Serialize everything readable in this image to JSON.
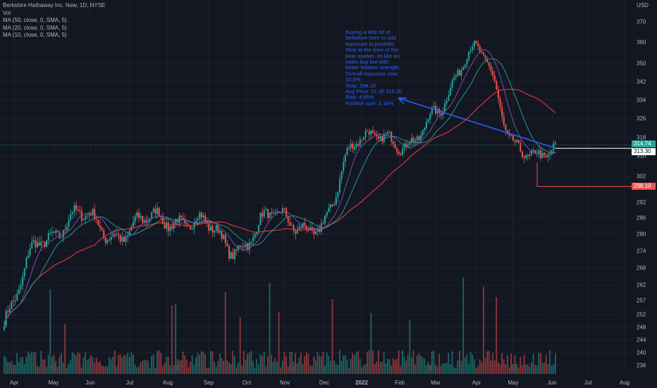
{
  "legend": {
    "title": "Berkshire Hathaway Inc. New, 1D, NYSE",
    "vol": "Vol",
    "ma50": "MA (50, close, 0, SMA, 5)",
    "ma20": "MA (20, close, 0, SMA, 5)",
    "ma10": "MA (10, close, 0, SMA, 5)"
  },
  "note": "Buying a little bit of\nberkshire here to add\nexposure to portfolio.\nStop at the lows of the\nbear market. Its like an\nindex buy but with\nbetter relative strength.\nOverall exposure now:\n32.8%\nStop: 298.10\nAvg Price: 51 @ 313.30\nRisk: 4.85%\nPosition size: 3.18%",
  "currency": "USD",
  "price_tags": {
    "last": "314.74",
    "avg": "313.30",
    "stop": "298.10"
  },
  "colors": {
    "up": "#26a69a",
    "down": "#ef5350",
    "ma50": "#e53935",
    "ma20": "#26a69a",
    "ma10": "#7e57c2",
    "annotation": "#2962ff",
    "background": "#131722"
  },
  "chart_data": {
    "type": "candlestick",
    "symbol": "Berkshire Hathaway Inc. New",
    "interval": "1D",
    "exchange": "NYSE",
    "y_ticks": [
      370,
      360,
      350,
      342,
      334,
      326,
      318,
      310,
      302,
      292,
      286,
      280,
      274,
      268,
      262,
      257,
      252,
      248,
      244,
      240,
      236
    ],
    "x_ticks": [
      "Apr",
      "May",
      "Jun",
      "Jul",
      "Aug",
      "Sep",
      "Oct",
      "Nov",
      "Dec",
      "2022",
      "Feb",
      "Mar",
      "Apr",
      "May",
      "Jun",
      "Jul",
      "Aug"
    ],
    "price_path": [
      [
        "Apr",
        250
      ],
      [
        "May",
        280
      ],
      [
        "Jun",
        286
      ],
      [
        "Jul",
        280
      ],
      [
        "Aug",
        287
      ],
      [
        "Sep",
        283
      ],
      [
        "Oct",
        276
      ],
      [
        "Nov",
        288
      ],
      [
        "Dec",
        280
      ],
      [
        "2022",
        320
      ],
      [
        "Feb",
        314
      ],
      [
        "Mar",
        328
      ],
      [
        "Apr",
        360
      ],
      [
        "May",
        312
      ],
      [
        "Jun",
        313
      ]
    ],
    "levels": {
      "last_price": 314.74,
      "avg_price": 313.3,
      "stop": 298.1
    },
    "moving_averages": [
      "MA 50",
      "MA 20",
      "MA 10"
    ],
    "volume": true
  }
}
